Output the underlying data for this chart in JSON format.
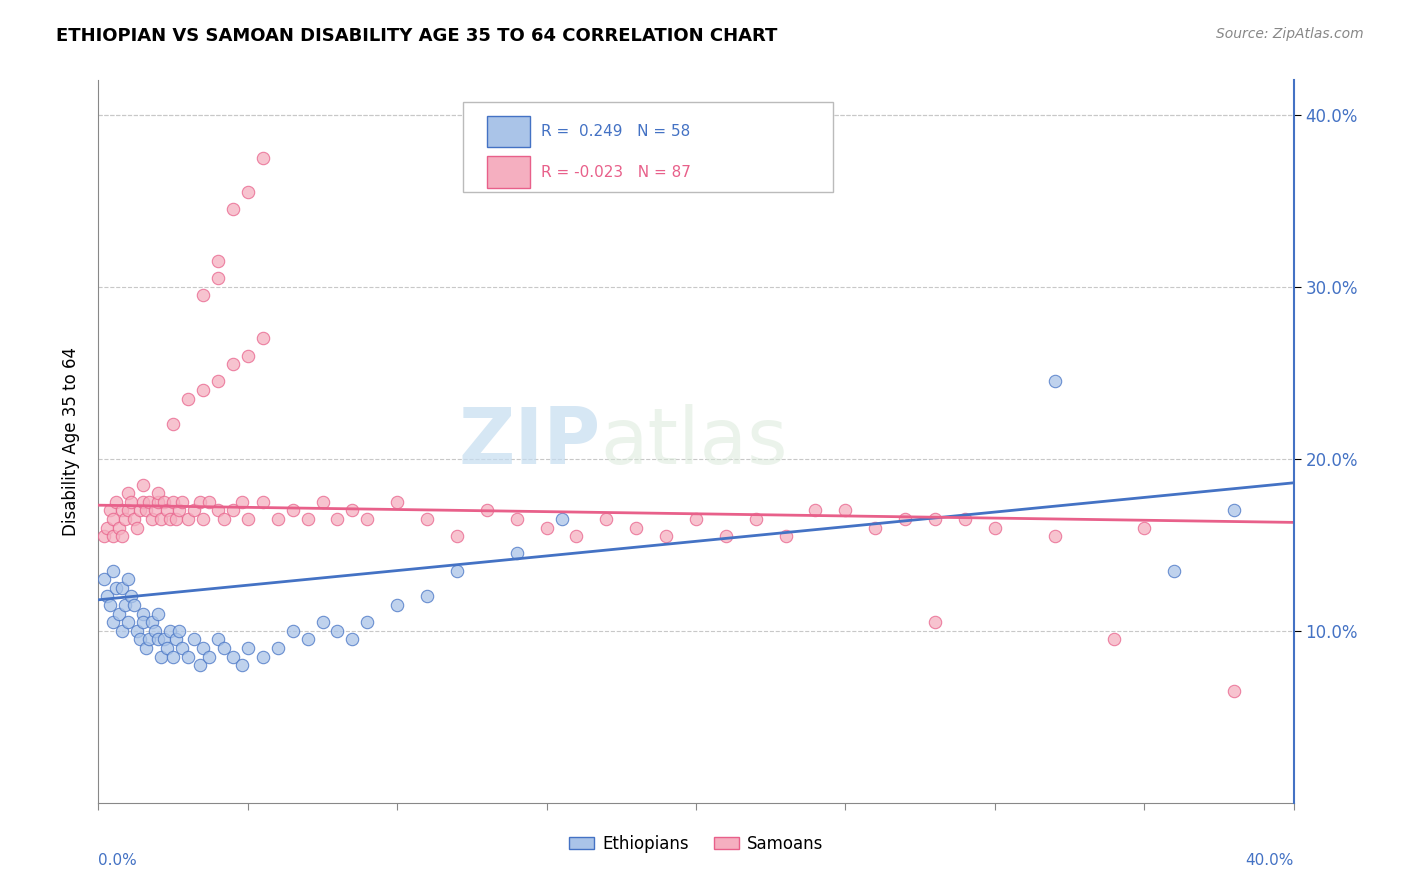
{
  "title": "ETHIOPIAN VS SAMOAN DISABILITY AGE 35 TO 64 CORRELATION CHART",
  "source": "Source: ZipAtlas.com",
  "ylabel": "Disability Age 35 to 64",
  "x_min": 0.0,
  "x_max": 0.4,
  "y_min": 0.0,
  "y_max": 0.42,
  "watermark_zip": "ZIP",
  "watermark_atlas": "atlas",
  "ethiopian_color": "#aac4e8",
  "samoan_color": "#f5afc0",
  "line_ethiopian": "#4472c4",
  "line_samoan": "#e8608a",
  "yticks": [
    0.1,
    0.2,
    0.3,
    0.4
  ],
  "xticks": [
    0.0,
    0.05,
    0.1,
    0.15,
    0.2,
    0.25,
    0.3,
    0.35,
    0.4
  ],
  "ethiopian_scatter": [
    [
      0.002,
      0.13
    ],
    [
      0.003,
      0.12
    ],
    [
      0.004,
      0.115
    ],
    [
      0.005,
      0.135
    ],
    [
      0.005,
      0.105
    ],
    [
      0.006,
      0.125
    ],
    [
      0.007,
      0.11
    ],
    [
      0.008,
      0.1
    ],
    [
      0.008,
      0.125
    ],
    [
      0.009,
      0.115
    ],
    [
      0.01,
      0.13
    ],
    [
      0.01,
      0.105
    ],
    [
      0.011,
      0.12
    ],
    [
      0.012,
      0.115
    ],
    [
      0.013,
      0.1
    ],
    [
      0.014,
      0.095
    ],
    [
      0.015,
      0.11
    ],
    [
      0.015,
      0.105
    ],
    [
      0.016,
      0.09
    ],
    [
      0.017,
      0.095
    ],
    [
      0.018,
      0.105
    ],
    [
      0.019,
      0.1
    ],
    [
      0.02,
      0.095
    ],
    [
      0.02,
      0.11
    ],
    [
      0.021,
      0.085
    ],
    [
      0.022,
      0.095
    ],
    [
      0.023,
      0.09
    ],
    [
      0.024,
      0.1
    ],
    [
      0.025,
      0.085
    ],
    [
      0.026,
      0.095
    ],
    [
      0.027,
      0.1
    ],
    [
      0.028,
      0.09
    ],
    [
      0.03,
      0.085
    ],
    [
      0.032,
      0.095
    ],
    [
      0.034,
      0.08
    ],
    [
      0.035,
      0.09
    ],
    [
      0.037,
      0.085
    ],
    [
      0.04,
      0.095
    ],
    [
      0.042,
      0.09
    ],
    [
      0.045,
      0.085
    ],
    [
      0.048,
      0.08
    ],
    [
      0.05,
      0.09
    ],
    [
      0.055,
      0.085
    ],
    [
      0.06,
      0.09
    ],
    [
      0.065,
      0.1
    ],
    [
      0.07,
      0.095
    ],
    [
      0.075,
      0.105
    ],
    [
      0.08,
      0.1
    ],
    [
      0.085,
      0.095
    ],
    [
      0.09,
      0.105
    ],
    [
      0.1,
      0.115
    ],
    [
      0.11,
      0.12
    ],
    [
      0.12,
      0.135
    ],
    [
      0.14,
      0.145
    ],
    [
      0.155,
      0.165
    ],
    [
      0.32,
      0.245
    ],
    [
      0.36,
      0.135
    ],
    [
      0.38,
      0.17
    ]
  ],
  "samoan_scatter": [
    [
      0.002,
      0.155
    ],
    [
      0.003,
      0.16
    ],
    [
      0.004,
      0.17
    ],
    [
      0.005,
      0.155
    ],
    [
      0.005,
      0.165
    ],
    [
      0.006,
      0.175
    ],
    [
      0.007,
      0.16
    ],
    [
      0.008,
      0.155
    ],
    [
      0.008,
      0.17
    ],
    [
      0.009,
      0.165
    ],
    [
      0.01,
      0.17
    ],
    [
      0.01,
      0.18
    ],
    [
      0.011,
      0.175
    ],
    [
      0.012,
      0.165
    ],
    [
      0.013,
      0.16
    ],
    [
      0.014,
      0.17
    ],
    [
      0.015,
      0.175
    ],
    [
      0.015,
      0.185
    ],
    [
      0.016,
      0.17
    ],
    [
      0.017,
      0.175
    ],
    [
      0.018,
      0.165
    ],
    [
      0.019,
      0.17
    ],
    [
      0.02,
      0.175
    ],
    [
      0.02,
      0.18
    ],
    [
      0.021,
      0.165
    ],
    [
      0.022,
      0.175
    ],
    [
      0.023,
      0.17
    ],
    [
      0.024,
      0.165
    ],
    [
      0.025,
      0.175
    ],
    [
      0.026,
      0.165
    ],
    [
      0.027,
      0.17
    ],
    [
      0.028,
      0.175
    ],
    [
      0.03,
      0.165
    ],
    [
      0.032,
      0.17
    ],
    [
      0.034,
      0.175
    ],
    [
      0.035,
      0.165
    ],
    [
      0.037,
      0.175
    ],
    [
      0.04,
      0.17
    ],
    [
      0.042,
      0.165
    ],
    [
      0.045,
      0.17
    ],
    [
      0.048,
      0.175
    ],
    [
      0.05,
      0.165
    ],
    [
      0.055,
      0.175
    ],
    [
      0.06,
      0.165
    ],
    [
      0.065,
      0.17
    ],
    [
      0.07,
      0.165
    ],
    [
      0.075,
      0.175
    ],
    [
      0.08,
      0.165
    ],
    [
      0.085,
      0.17
    ],
    [
      0.09,
      0.165
    ],
    [
      0.025,
      0.22
    ],
    [
      0.03,
      0.235
    ],
    [
      0.035,
      0.24
    ],
    [
      0.04,
      0.245
    ],
    [
      0.045,
      0.255
    ],
    [
      0.05,
      0.26
    ],
    [
      0.055,
      0.27
    ],
    [
      0.035,
      0.295
    ],
    [
      0.04,
      0.305
    ],
    [
      0.04,
      0.315
    ],
    [
      0.045,
      0.345
    ],
    [
      0.05,
      0.355
    ],
    [
      0.055,
      0.375
    ],
    [
      0.1,
      0.175
    ],
    [
      0.11,
      0.165
    ],
    [
      0.12,
      0.155
    ],
    [
      0.13,
      0.17
    ],
    [
      0.14,
      0.165
    ],
    [
      0.15,
      0.16
    ],
    [
      0.16,
      0.155
    ],
    [
      0.17,
      0.165
    ],
    [
      0.18,
      0.16
    ],
    [
      0.19,
      0.155
    ],
    [
      0.2,
      0.165
    ],
    [
      0.21,
      0.155
    ],
    [
      0.22,
      0.165
    ],
    [
      0.23,
      0.155
    ],
    [
      0.24,
      0.17
    ],
    [
      0.25,
      0.17
    ],
    [
      0.26,
      0.16
    ],
    [
      0.27,
      0.165
    ],
    [
      0.28,
      0.165
    ],
    [
      0.29,
      0.165
    ],
    [
      0.3,
      0.16
    ],
    [
      0.32,
      0.155
    ],
    [
      0.35,
      0.16
    ],
    [
      0.28,
      0.105
    ],
    [
      0.34,
      0.095
    ],
    [
      0.38,
      0.065
    ]
  ]
}
